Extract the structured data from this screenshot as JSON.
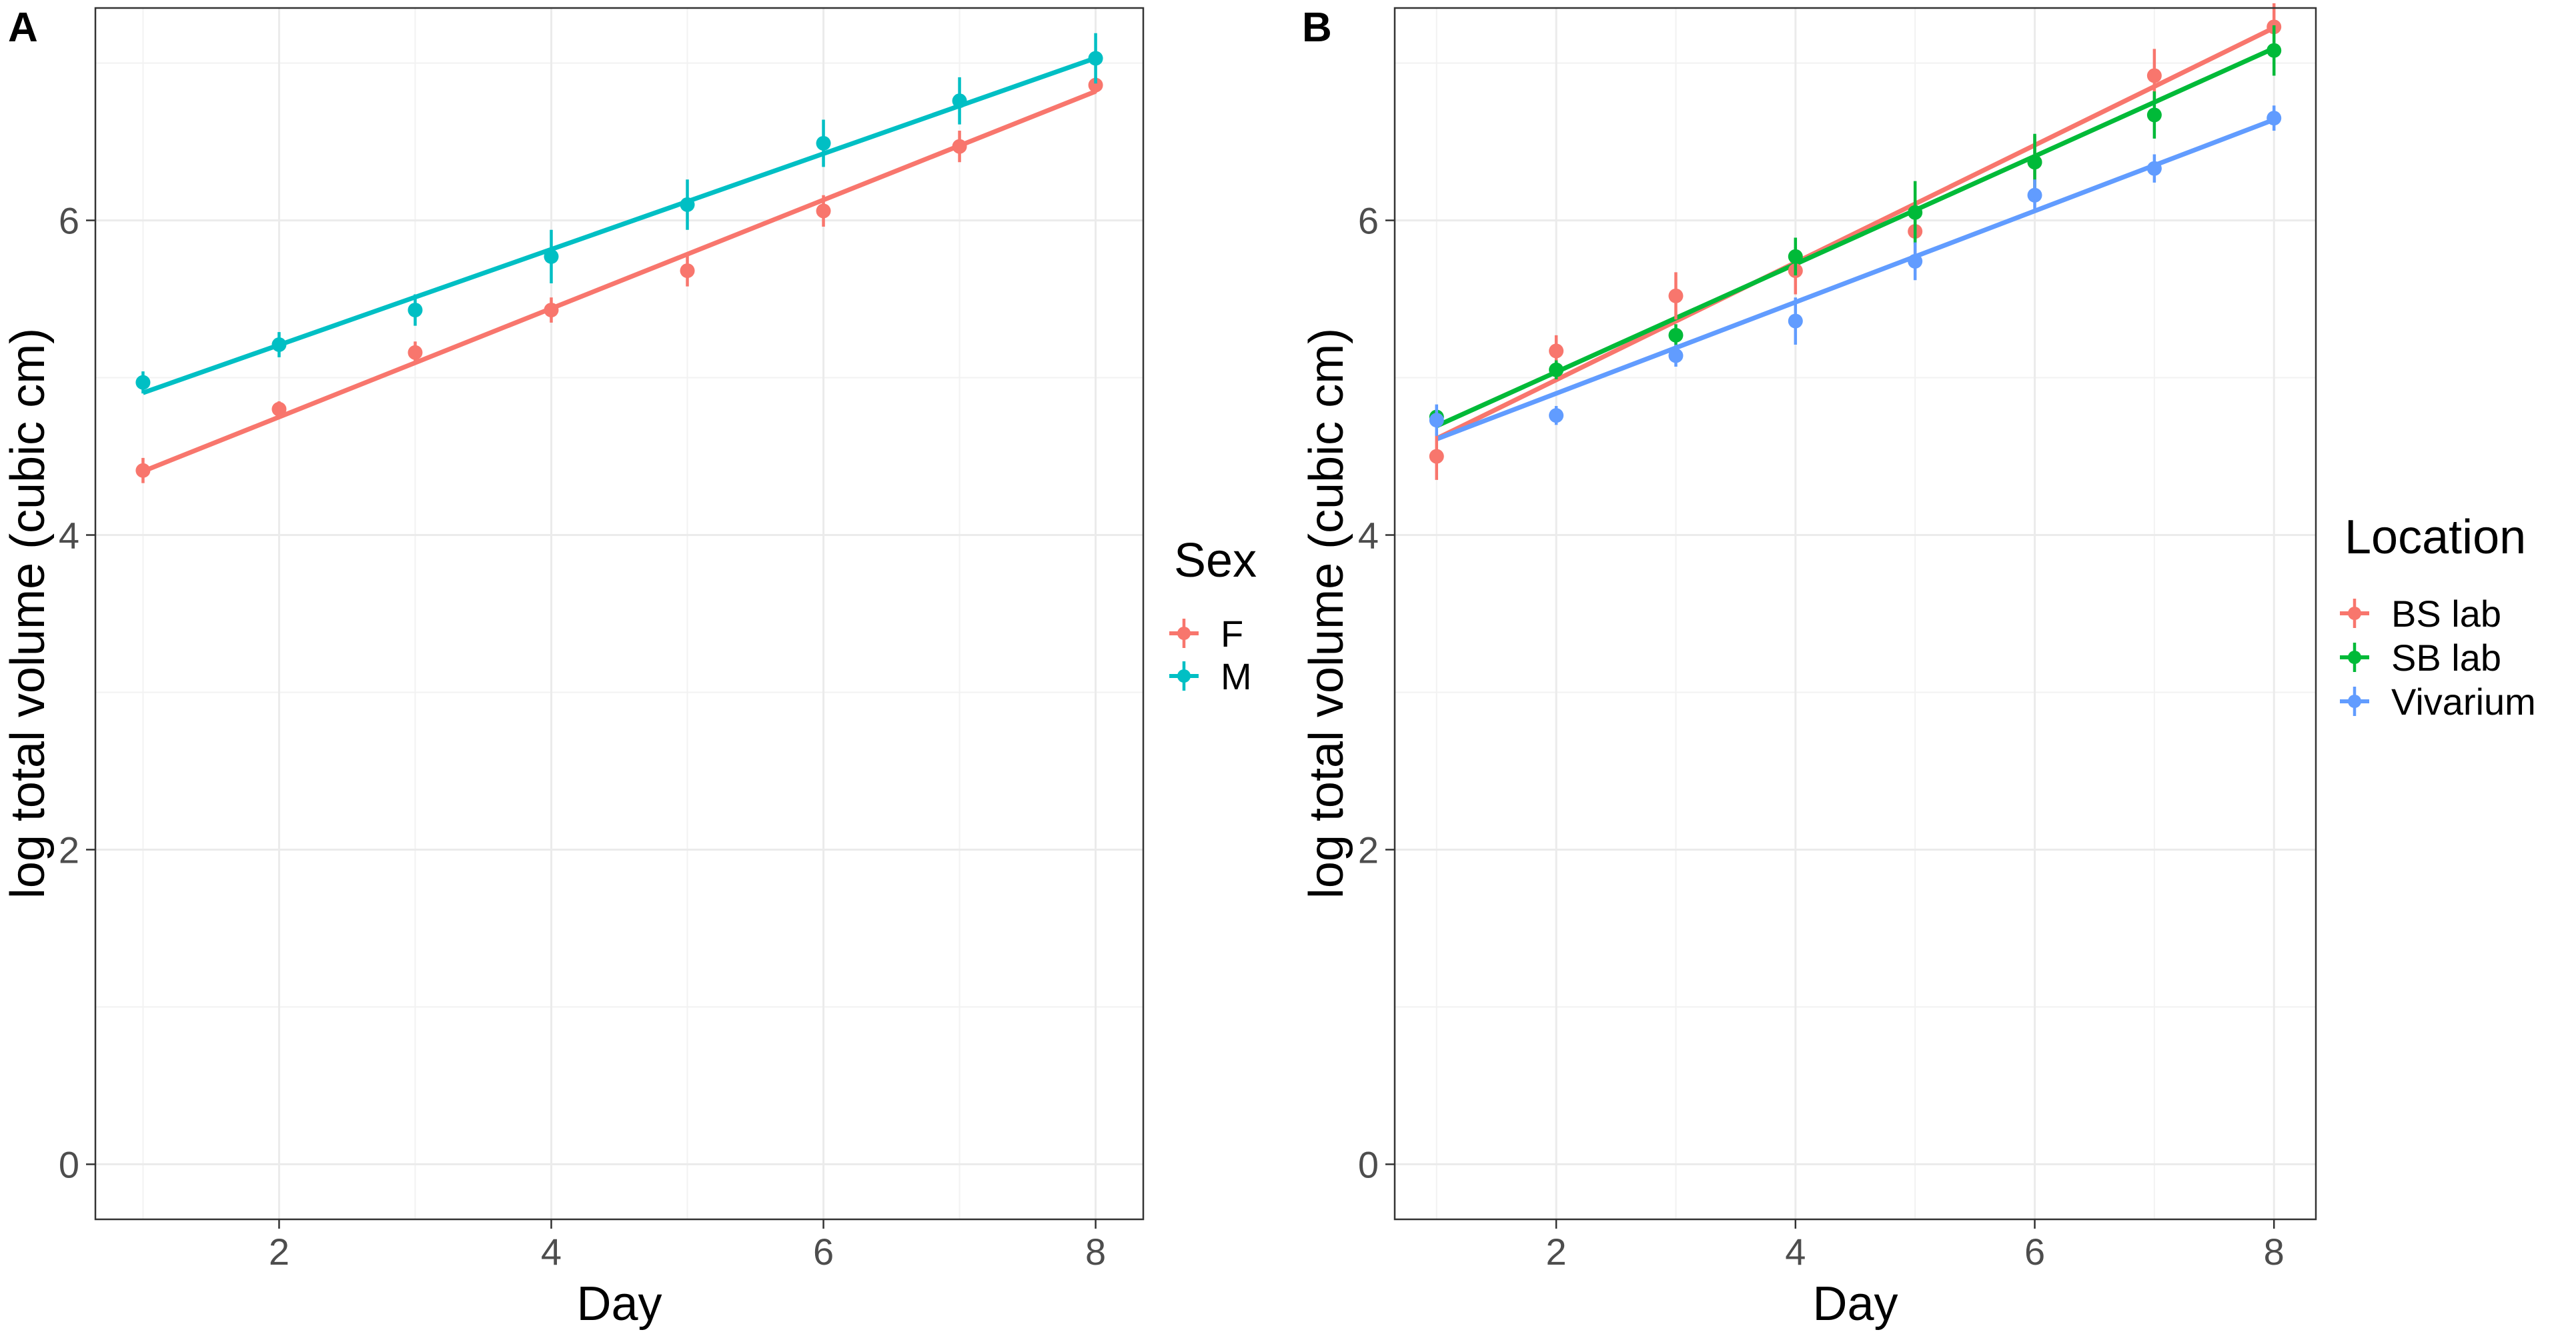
{
  "chart_data": [
    {
      "panel_label": "A",
      "type": "scatter",
      "xlabel": "Day",
      "ylabel": "log total volume (cubic cm)",
      "xlim": [
        0.65,
        8.35
      ],
      "ylim": [
        -0.35,
        7.35
      ],
      "xticks": [
        2,
        4,
        6,
        8
      ],
      "yticks": [
        0,
        2,
        4,
        6
      ],
      "x_tick_labels": [
        "2",
        "4",
        "6",
        "8"
      ],
      "y_tick_labels": [
        "0",
        "2",
        "4",
        "6"
      ],
      "grid": true,
      "legend": {
        "title": "Sex",
        "position": "right"
      },
      "series": [
        {
          "name": "F",
          "color": "#F8766D",
          "x": [
            1,
            2,
            3,
            4,
            5,
            6,
            7,
            8
          ],
          "y": [
            4.41,
            4.8,
            5.16,
            5.43,
            5.68,
            6.06,
            6.47,
            6.86
          ],
          "err": [
            0.08,
            0.05,
            0.07,
            0.08,
            0.1,
            0.1,
            0.1,
            0.05
          ],
          "fit": {
            "intercept": 4.06,
            "slope": 0.345
          }
        },
        {
          "name": "M",
          "color": "#00BFC4",
          "x": [
            1,
            2,
            3,
            4,
            5,
            6,
            7,
            8
          ],
          "y": [
            4.97,
            5.21,
            5.43,
            5.77,
            6.1,
            6.49,
            6.76,
            7.03
          ],
          "err": [
            0.07,
            0.08,
            0.1,
            0.17,
            0.16,
            0.15,
            0.15,
            0.16
          ],
          "fit": {
            "intercept": 4.6,
            "slope": 0.304
          }
        }
      ]
    },
    {
      "panel_label": "B",
      "type": "scatter",
      "xlabel": "Day",
      "ylabel": "log total volume (cubic cm)",
      "xlim": [
        0.65,
        8.35
      ],
      "ylim": [
        -0.35,
        7.35
      ],
      "xticks": [
        2,
        4,
        6,
        8
      ],
      "yticks": [
        0,
        2,
        4,
        6
      ],
      "x_tick_labels": [
        "2",
        "4",
        "6",
        "8"
      ],
      "y_tick_labels": [
        "0",
        "2",
        "4",
        "6"
      ],
      "grid": true,
      "legend": {
        "title": "Location",
        "position": "right"
      },
      "series": [
        {
          "name": "BS lab",
          "color": "#F8766D",
          "x": [
            1,
            2,
            3,
            4,
            5,
            6,
            7,
            8
          ],
          "y": [
            4.5,
            5.17,
            5.52,
            5.68,
            5.93,
            6.37,
            6.92,
            7.23
          ],
          "err": [
            0.15,
            0.1,
            0.15,
            0.15,
            0.2,
            0.17,
            0.17,
            0.15
          ],
          "fit": {
            "intercept": 4.24,
            "slope": 0.373
          }
        },
        {
          "name": "SB lab",
          "color": "#00BA38",
          "x": [
            1,
            2,
            3,
            4,
            5,
            6,
            7,
            8
          ],
          "y": [
            4.75,
            5.05,
            5.27,
            5.77,
            6.05,
            6.37,
            6.67,
            7.08
          ],
          "err": [
            0.07,
            0.06,
            0.07,
            0.12,
            0.2,
            0.18,
            0.15,
            0.16
          ],
          "fit": {
            "intercept": 4.35,
            "slope": 0.343
          }
        },
        {
          "name": "Vivarium",
          "color": "#619CFF",
          "x": [
            1,
            2,
            3,
            4,
            5,
            6,
            7,
            8
          ],
          "y": [
            4.73,
            4.76,
            5.14,
            5.36,
            5.74,
            6.16,
            6.33,
            6.65
          ],
          "err": [
            0.1,
            0.06,
            0.07,
            0.15,
            0.12,
            0.1,
            0.09,
            0.08
          ],
          "fit": {
            "intercept": 4.32,
            "slope": 0.29
          }
        }
      ]
    }
  ]
}
